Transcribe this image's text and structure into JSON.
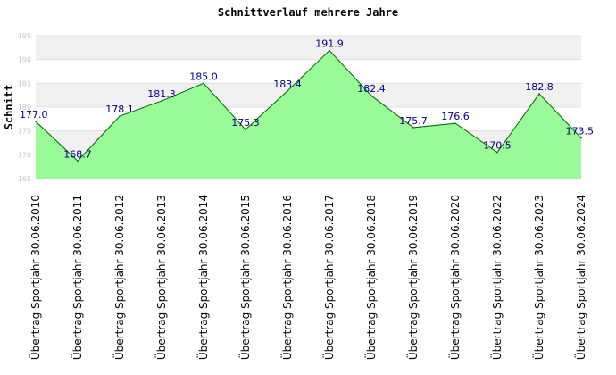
{
  "chart_data": {
    "type": "area",
    "title": "Schnittverlauf mehrere Jahre",
    "ylabel": "Schnitt",
    "xlabel": "",
    "categories": [
      "Übertrag Sportjahr 30.06.2010",
      "Übertrag Sportjahr 30.06.2011",
      "Übertrag Sportjahr 30.06.2012",
      "Übertrag Sportjahr 30.06.2013",
      "Übertrag Sportjahr 30.06.2014",
      "Übertrag Sportjahr 30.06.2015",
      "Übertrag Sportjahr 30.06.2016",
      "Übertrag Sportjahr 30.06.2017",
      "Übertrag Sportjahr 30.06.2018",
      "Übertrag Sportjahr 30.06.2019",
      "Übertrag Sportjahr 30.06.2020",
      "Übertrag Sportjahr 30.06.2022",
      "Übertrag Sportjahr 30.06.2023",
      "Übertrag Sportjahr 30.06.2024"
    ],
    "values": [
      177.0,
      168.7,
      178.1,
      181.3,
      185.0,
      175.3,
      183.4,
      191.9,
      182.4,
      175.7,
      176.6,
      170.5,
      182.8,
      173.5
    ],
    "value_labels": [
      "177.0",
      "168.7",
      "178.1",
      "181.3",
      "185.0",
      "175.3",
      "183.4",
      "191.9",
      "182.4",
      "175.7",
      "176.6",
      "170.5",
      "182.8",
      "173.5"
    ],
    "ylim": [
      165,
      195
    ],
    "yticks": [
      165,
      170,
      175,
      180,
      185,
      190,
      195
    ],
    "grid": true,
    "colors": {
      "fill": "#98FB98",
      "line": "#006400",
      "band": "#f0f0f0",
      "label": "#000080"
    }
  }
}
